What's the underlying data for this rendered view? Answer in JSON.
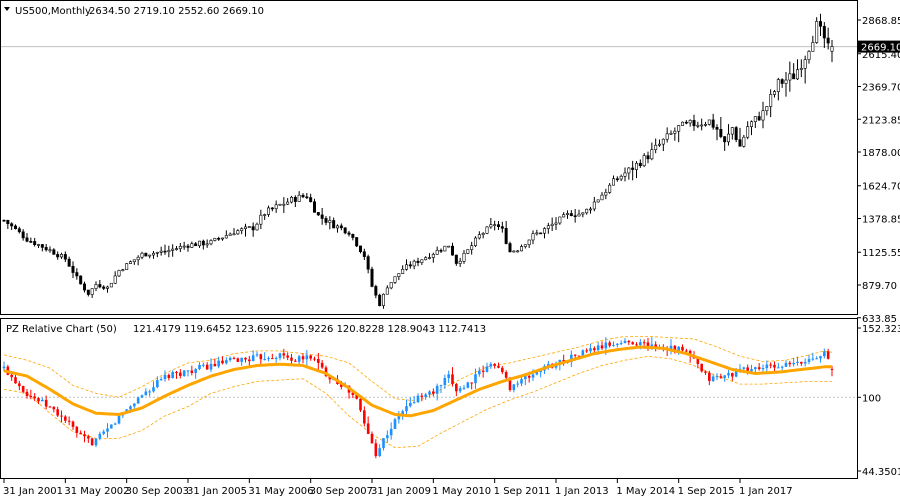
{
  "main_panel": {
    "triangle_icon": "dropdown-triangle-icon",
    "symbol_label": "US500,Monthly",
    "ohlc_text": "2634.50 2719.10 2552.60 2669.10",
    "current_price_tag": "2669.10",
    "colors": {
      "candle": "#000000",
      "price_line": "#c0c0c0",
      "price_tag_bg": "#000000",
      "price_tag_text": "#ffffff"
    }
  },
  "indicator_panel": {
    "name_label": "PZ Relative Chart (50)",
    "values_text": "121.4179 119.6452 123.6905 115.9226 120.8228 128.9043 112.7413",
    "colors": {
      "up": "#1e90ff",
      "down": "#ff0000",
      "ma": "#ffa500",
      "bands": "#ffa500",
      "ref_line": "#c0c0c0"
    }
  },
  "chart_data": [
    {
      "type": "candlestick",
      "name": "US500,Monthly",
      "y_ticks": [
        "2868.85",
        "2615.40",
        "2369.70",
        "2123.85",
        "1878.00",
        "1624.70",
        "1378.85",
        "1125.55",
        "879.70",
        "633.85"
      ],
      "y_tick_values": [
        2868.85,
        2615.4,
        2369.7,
        2123.85,
        1878.0,
        1624.7,
        1378.85,
        1125.55,
        879.7,
        633.85
      ],
      "ylim": [
        633.85,
        2940
      ],
      "current_price": 2669.1,
      "last_bar": {
        "open": 2634.5,
        "high": 2719.1,
        "low": 2552.6,
        "close": 2669.1
      },
      "x_tick_labels": [
        "31 Jan 2001",
        "31 May 2002",
        "30 Sep 2003",
        "31 Jan 2005",
        "31 May 2006",
        "30 Sep 2007",
        "31 Jan 2009",
        "1 May 2010",
        "1 Sep 2011",
        "1 Jan 2013",
        "1 May 2014",
        "1 Sep 2015",
        "1 Jan 2017"
      ],
      "anchors_close": [
        [
          0,
          1366
        ],
        [
          6,
          1224
        ],
        [
          12,
          1140
        ],
        [
          16,
          1076
        ],
        [
          20,
          886
        ],
        [
          22,
          815
        ],
        [
          24,
          885
        ],
        [
          27,
          860
        ],
        [
          30,
          990
        ],
        [
          36,
          1110
        ],
        [
          42,
          1131
        ],
        [
          48,
          1180
        ],
        [
          54,
          1200
        ],
        [
          60,
          1280
        ],
        [
          65,
          1310
        ],
        [
          68,
          1420
        ],
        [
          72,
          1480
        ],
        [
          76,
          1530
        ],
        [
          79,
          1550
        ],
        [
          82,
          1400
        ],
        [
          86,
          1330
        ],
        [
          90,
          1280
        ],
        [
          94,
          1100
        ],
        [
          96,
          870
        ],
        [
          97,
          800
        ],
        [
          98,
          735
        ],
        [
          100,
          870
        ],
        [
          104,
          1000
        ],
        [
          108,
          1060
        ],
        [
          112,
          1120
        ],
        [
          116,
          1180
        ],
        [
          118,
          1050
        ],
        [
          120,
          1100
        ],
        [
          124,
          1250
        ],
        [
          128,
          1340
        ],
        [
          130,
          1290
        ],
        [
          132,
          1130
        ],
        [
          134,
          1150
        ],
        [
          138,
          1250
        ],
        [
          140,
          1280
        ],
        [
          144,
          1350
        ],
        [
          148,
          1420
        ],
        [
          151,
          1410
        ],
        [
          156,
          1560
        ],
        [
          160,
          1680
        ],
        [
          164,
          1760
        ],
        [
          168,
          1850
        ],
        [
          172,
          1960
        ],
        [
          176,
          2060
        ],
        [
          180,
          2090
        ],
        [
          184,
          2110
        ],
        [
          186,
          2050
        ],
        [
          188,
          1940
        ],
        [
          190,
          2060
        ],
        [
          192,
          1920
        ],
        [
          194,
          2070
        ],
        [
          198,
          2170
        ],
        [
          202,
          2390
        ],
        [
          206,
          2450
        ],
        [
          209,
          2600
        ],
        [
          212,
          2820
        ],
        [
          214,
          2730
        ],
        [
          215,
          2650
        ],
        [
          216,
          2669.1
        ]
      ]
    },
    {
      "type": "candlestick",
      "name": "PZ Relative Chart (50)",
      "y_ticks": [
        "152.3232",
        "100",
        "44.3501"
      ],
      "y_tick_values": [
        152.3232,
        100,
        44.3501
      ],
      "ylim": [
        44.3501,
        152.3232
      ],
      "reference_line": 100,
      "last_values": [
        121.4179,
        119.6452,
        123.6905,
        115.9226,
        120.8228,
        128.9043,
        112.7413
      ],
      "anchors_close": [
        [
          0,
          122
        ],
        [
          6,
          103
        ],
        [
          12,
          92
        ],
        [
          16,
          83
        ],
        [
          20,
          70
        ],
        [
          23,
          66
        ],
        [
          26,
          72
        ],
        [
          30,
          85
        ],
        [
          36,
          102
        ],
        [
          42,
          115
        ],
        [
          48,
          120
        ],
        [
          54,
          124
        ],
        [
          60,
          128
        ],
        [
          66,
          130
        ],
        [
          72,
          132
        ],
        [
          76,
          128
        ],
        [
          80,
          131
        ],
        [
          84,
          118
        ],
        [
          88,
          110
        ],
        [
          92,
          98
        ],
        [
          95,
          72
        ],
        [
          97,
          58
        ],
        [
          100,
          73
        ],
        [
          104,
          90
        ],
        [
          108,
          100
        ],
        [
          112,
          104
        ],
        [
          116,
          115
        ],
        [
          118,
          106
        ],
        [
          120,
          108
        ],
        [
          124,
          118
        ],
        [
          128,
          126
        ],
        [
          130,
          118
        ],
        [
          132,
          108
        ],
        [
          136,
          114
        ],
        [
          140,
          121
        ],
        [
          146,
          128
        ],
        [
          152,
          135
        ],
        [
          158,
          140
        ],
        [
          164,
          142
        ],
        [
          170,
          138
        ],
        [
          174,
          138
        ],
        [
          178,
          134
        ],
        [
          180,
          128
        ],
        [
          182,
          119
        ],
        [
          184,
          114
        ],
        [
          188,
          116
        ],
        [
          192,
          120
        ],
        [
          196,
          122
        ],
        [
          200,
          123
        ],
        [
          204,
          124
        ],
        [
          208,
          126
        ],
        [
          212,
          131
        ],
        [
          214,
          136
        ],
        [
          215,
          128
        ],
        [
          216,
          121.4
        ]
      ],
      "ma_period": 50,
      "ma_anchors": [
        [
          0,
          120
        ],
        [
          6,
          116
        ],
        [
          12,
          106
        ],
        [
          18,
          95
        ],
        [
          24,
          88
        ],
        [
          30,
          87
        ],
        [
          36,
          92
        ],
        [
          42,
          101
        ],
        [
          48,
          109
        ],
        [
          54,
          116
        ],
        [
          60,
          121
        ],
        [
          66,
          124
        ],
        [
          72,
          125
        ],
        [
          78,
          124
        ],
        [
          84,
          118
        ],
        [
          90,
          107
        ],
        [
          96,
          94
        ],
        [
          102,
          87
        ],
        [
          106,
          86
        ],
        [
          112,
          90
        ],
        [
          118,
          98
        ],
        [
          124,
          106
        ],
        [
          130,
          112
        ],
        [
          136,
          117
        ],
        [
          142,
          123
        ],
        [
          148,
          128
        ],
        [
          154,
          133
        ],
        [
          160,
          136
        ],
        [
          166,
          138
        ],
        [
          172,
          137
        ],
        [
          178,
          133
        ],
        [
          184,
          127
        ],
        [
          190,
          121
        ],
        [
          196,
          118
        ],
        [
          202,
          119
        ],
        [
          208,
          121
        ],
        [
          214,
          123
        ],
        [
          216,
          123
        ]
      ],
      "band_anchors_upper": [
        [
          0,
          132
        ],
        [
          6,
          128
        ],
        [
          12,
          122
        ],
        [
          18,
          109
        ],
        [
          24,
          103
        ],
        [
          30,
          100
        ],
        [
          36,
          108
        ],
        [
          42,
          118
        ],
        [
          48,
          126
        ],
        [
          54,
          128
        ],
        [
          60,
          133
        ],
        [
          66,
          135
        ],
        [
          72,
          135
        ],
        [
          78,
          133
        ],
        [
          84,
          131
        ],
        [
          90,
          126
        ],
        [
          96,
          112
        ],
        [
          102,
          99
        ],
        [
          108,
          97
        ],
        [
          114,
          106
        ],
        [
          120,
          115
        ],
        [
          126,
          123
        ],
        [
          132,
          126
        ],
        [
          138,
          130
        ],
        [
          144,
          134
        ],
        [
          150,
          138
        ],
        [
          156,
          143
        ],
        [
          162,
          146
        ],
        [
          168,
          146
        ],
        [
          174,
          145
        ],
        [
          180,
          144
        ],
        [
          186,
          138
        ],
        [
          192,
          131
        ],
        [
          198,
          127
        ],
        [
          204,
          128
        ],
        [
          210,
          132
        ],
        [
          214,
          135
        ],
        [
          216,
          134
        ]
      ],
      "band_anchors_lower": [
        [
          0,
          106
        ],
        [
          6,
          103
        ],
        [
          12,
          88
        ],
        [
          18,
          74
        ],
        [
          24,
          69
        ],
        [
          30,
          69
        ],
        [
          36,
          75
        ],
        [
          42,
          86
        ],
        [
          48,
          93
        ],
        [
          54,
          103
        ],
        [
          60,
          108
        ],
        [
          66,
          112
        ],
        [
          72,
          113
        ],
        [
          78,
          114
        ],
        [
          84,
          103
        ],
        [
          90,
          86
        ],
        [
          96,
          72
        ],
        [
          102,
          62
        ],
        [
          108,
          63
        ],
        [
          114,
          73
        ],
        [
          120,
          82
        ],
        [
          126,
          91
        ],
        [
          132,
          98
        ],
        [
          138,
          104
        ],
        [
          144,
          111
        ],
        [
          150,
          118
        ],
        [
          156,
          124
        ],
        [
          162,
          128
        ],
        [
          168,
          131
        ],
        [
          174,
          129
        ],
        [
          180,
          124
        ],
        [
          186,
          116
        ],
        [
          192,
          110
        ],
        [
          198,
          110
        ],
        [
          204,
          111
        ],
        [
          210,
          112
        ],
        [
          214,
          112
        ],
        [
          216,
          112
        ]
      ]
    }
  ]
}
